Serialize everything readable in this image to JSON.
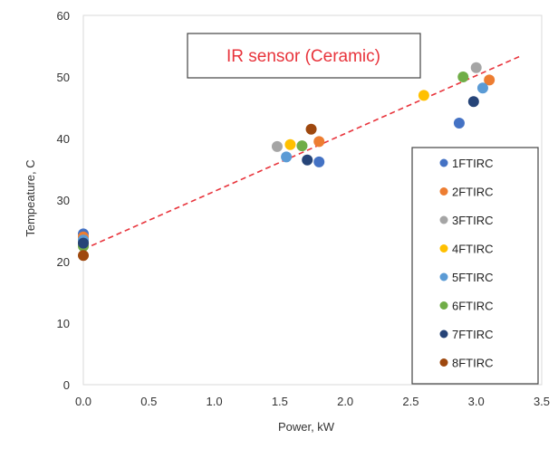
{
  "chart_data": {
    "type": "scatter",
    "xlabel": "Power, kW",
    "ylabel": "Tempeature, C",
    "xlim": [
      0,
      3.5
    ],
    "ylim": [
      0,
      60
    ],
    "xticks": [
      0,
      0.5,
      1,
      1.5,
      2,
      2.5,
      3,
      3.5
    ],
    "xtick_labels": [
      "0.0",
      "0.5",
      "1.0",
      "1.5",
      "2.0",
      "2.5",
      "3.0",
      "3.5"
    ],
    "yticks": [
      0,
      10,
      20,
      30,
      40,
      50,
      60
    ],
    "ytick_labels": [
      "0",
      "10",
      "20",
      "30",
      "40",
      "50",
      "60"
    ],
    "grid": false,
    "legend_position": "bottom-right",
    "annotation": "IR sensor (Ceramic)",
    "trendline": {
      "style": "dashed",
      "color": "#e8343c",
      "x": [
        0,
        3.35
      ],
      "y": [
        22,
        53.5
      ]
    },
    "series": [
      {
        "name": "1FTIRC",
        "color": "#4472c4",
        "points": [
          [
            0,
            24.5
          ],
          [
            1.8,
            36.2
          ],
          [
            2.87,
            42.5
          ]
        ]
      },
      {
        "name": "2FTIRC",
        "color": "#ed7d31",
        "points": [
          [
            0,
            24.0
          ],
          [
            1.8,
            39.5
          ],
          [
            3.1,
            49.5
          ]
        ]
      },
      {
        "name": "3FTIRC",
        "color": "#a5a5a5",
        "points": [
          [
            0,
            23.5
          ],
          [
            1.48,
            38.7
          ],
          [
            3.0,
            51.5
          ]
        ]
      },
      {
        "name": "4FTIRC",
        "color": "#ffc000",
        "points": [
          [
            0,
            23.0
          ],
          [
            1.58,
            39.0
          ],
          [
            2.6,
            47.0
          ]
        ]
      },
      {
        "name": "5FTIRC",
        "color": "#5b9bd5",
        "points": [
          [
            0,
            23.5
          ],
          [
            1.55,
            37.0
          ],
          [
            3.05,
            48.2
          ]
        ]
      },
      {
        "name": "6FTIRC",
        "color": "#70ad47",
        "points": [
          [
            0,
            22.5
          ],
          [
            1.67,
            38.8
          ],
          [
            2.9,
            50.0
          ]
        ]
      },
      {
        "name": "7FTIRC",
        "color": "#264478",
        "points": [
          [
            0,
            23.0
          ],
          [
            1.71,
            36.5
          ],
          [
            2.98,
            46.0
          ]
        ]
      },
      {
        "name": "8FTIRC",
        "color": "#9e480e",
        "points": [
          [
            0,
            21.0
          ],
          [
            1.74,
            41.5
          ]
        ]
      }
    ]
  }
}
